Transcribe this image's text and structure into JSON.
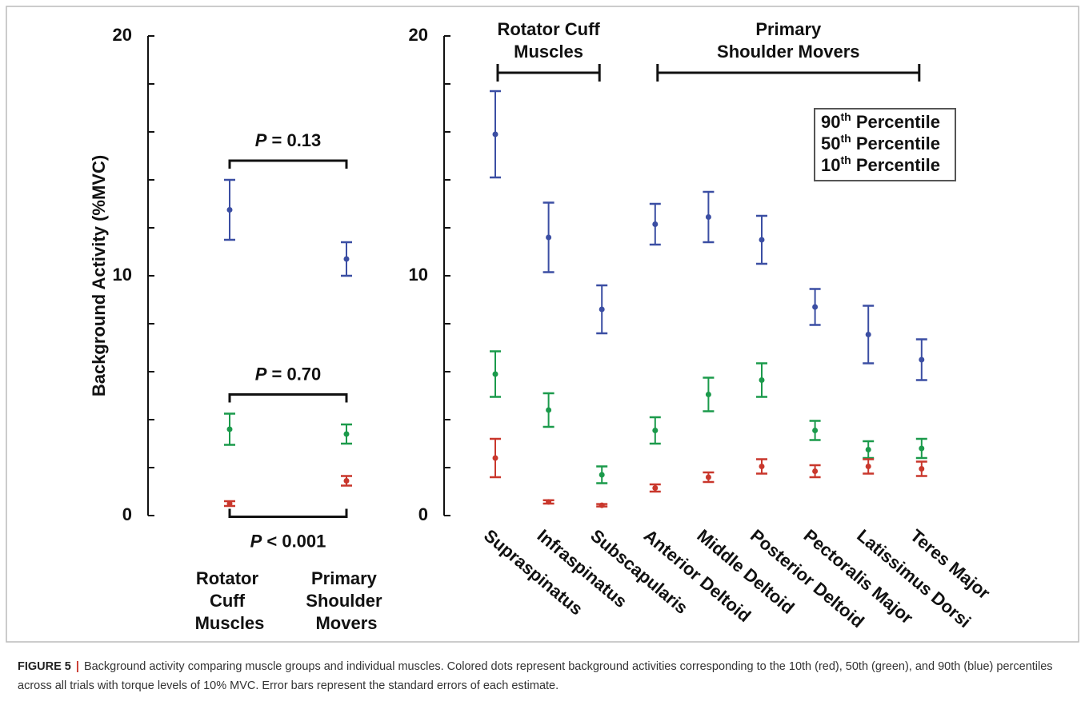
{
  "chart_data": [
    {
      "type": "errorbar",
      "ylabel": "Background Activity (%MVC)",
      "categories": [
        "Rotator Cuff Muscles",
        "Primary Shoulder Movers"
      ],
      "series": [
        {
          "color": "#3b4ea3",
          "values": [
            12.75,
            10.7
          ],
          "errors": [
            1.25,
            0.7
          ]
        },
        {
          "color": "#1b9a4b",
          "values": [
            3.6,
            3.4
          ],
          "errors": [
            0.65,
            0.4
          ]
        },
        {
          "color": "#c9372c",
          "values": [
            0.5,
            1.45
          ],
          "errors": [
            0.1,
            0.2
          ]
        }
      ],
      "comparisons": [
        "P = 0.13",
        "P = 0.70",
        "P < 0.001"
      ],
      "ylim": [
        0,
        20
      ],
      "yticks": [
        0,
        10,
        20
      ],
      "yticks_minor": [
        2,
        4,
        6,
        8,
        12,
        14,
        16,
        18
      ]
    },
    {
      "type": "errorbar",
      "categories": [
        "Supraspinatus",
        "Infraspinatus",
        "Subscapularis",
        "Anterior Deltoid",
        "Middle Deltoid",
        "Posterior Deltoid",
        "Pectoralis Major",
        "Latissimus Dorsi",
        "Teres Major"
      ],
      "series": [
        {
          "name": "90th Percentile",
          "color": "#3b4ea3",
          "values": [
            15.9,
            11.6,
            8.6,
            12.15,
            12.45,
            11.5,
            8.7,
            7.55,
            6.5
          ],
          "errors": [
            1.8,
            1.45,
            1.0,
            0.85,
            1.05,
            1.0,
            0.75,
            1.2,
            0.85
          ]
        },
        {
          "name": "50th Percentile",
          "color": "#1b9a4b",
          "values": [
            5.9,
            4.4,
            1.7,
            3.55,
            5.05,
            5.65,
            3.55,
            2.75,
            2.8
          ],
          "errors": [
            0.95,
            0.7,
            0.35,
            0.55,
            0.7,
            0.7,
            0.4,
            0.35,
            0.4
          ]
        },
        {
          "name": "10th Percentile",
          "color": "#c9372c",
          "values": [
            2.4,
            0.57,
            0.43,
            1.15,
            1.6,
            2.05,
            1.85,
            2.05,
            1.95
          ],
          "errors": [
            0.8,
            0.07,
            0.05,
            0.15,
            0.2,
            0.3,
            0.25,
            0.3,
            0.3
          ]
        }
      ],
      "groups": [
        {
          "label": [
            "Rotator Cuff",
            "Muscles"
          ],
          "categories": [
            "Supraspinatus",
            "Subscapularis"
          ]
        },
        {
          "label": [
            "Primary",
            "Shoulder Movers"
          ],
          "categories": [
            "Anterior Deltoid",
            "Teres Major"
          ]
        }
      ],
      "legend": "upper right",
      "ylim": [
        0,
        20
      ],
      "yticks": [
        0,
        10,
        20
      ],
      "yticks_minor": [
        2,
        4,
        6,
        8,
        12,
        14,
        16,
        18
      ]
    }
  ],
  "caption": {
    "label": "FIGURE 5",
    "separator": "|",
    "text": "Background activity comparing muscle groups and individual muscles. Colored dots represent background activities corresponding to the 10th (red), 50th (green), and 90th (blue) percentiles across all trials with torque levels of 10% MVC. Error bars represent the standard errors of each estimate."
  }
}
